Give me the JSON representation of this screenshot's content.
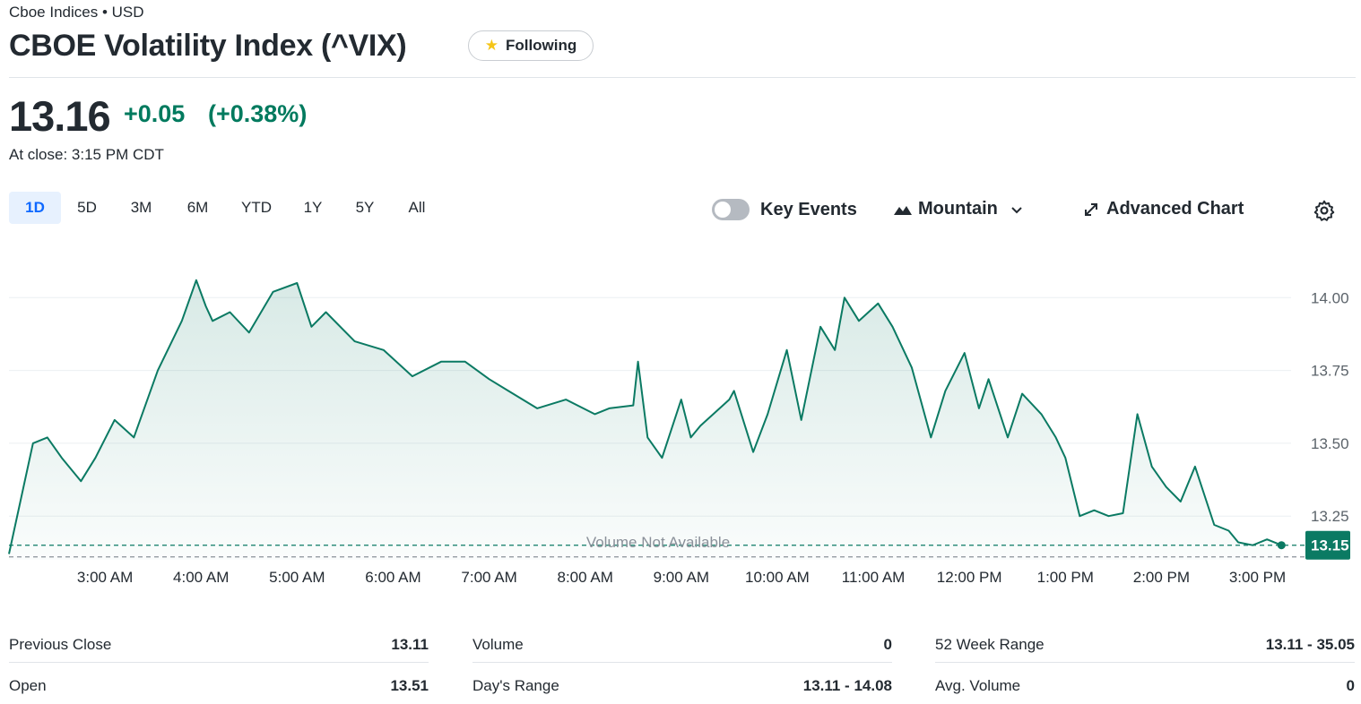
{
  "header": {
    "exchange": "Cboe Indices • USD",
    "title": "CBOE Volatility Index (^VIX)",
    "follow_label": "Following"
  },
  "quote": {
    "price": "13.16",
    "change": "+0.05",
    "change_percent": "(+0.38%)",
    "close_time": "At close: 3:15 PM CDT",
    "change_color": "#007a5e"
  },
  "ranges": [
    "1D",
    "5D",
    "3M",
    "6M",
    "YTD",
    "1Y",
    "5Y",
    "All"
  ],
  "active_range": "1D",
  "controls": {
    "key_events": "Key Events",
    "key_events_on": false,
    "chart_type": "Mountain",
    "advanced_chart": "Advanced Chart"
  },
  "chart_data": {
    "type": "area",
    "y_ticks": [
      "14.00",
      "13.75",
      "13.50",
      "13.25"
    ],
    "ylim": [
      13.1,
      14.13
    ],
    "x_ticks": [
      "3:00 AM",
      "4:00 AM",
      "5:00 AM",
      "6:00 AM",
      "7:00 AM",
      "8:00 AM",
      "9:00 AM",
      "10:00 AM",
      "11:00 AM",
      "12:00 PM",
      "1:00 PM",
      "2:00 PM",
      "3:00 PM"
    ],
    "x_tick_hours": [
      3,
      4,
      5,
      6,
      7,
      8,
      9,
      10,
      11,
      12,
      13,
      14,
      15
    ],
    "xlim_hours": [
      2.0,
      15.35
    ],
    "previous_close": 13.11,
    "last_price_label": "13.15",
    "volume_note": "Volume Not Available",
    "line_color": "#0b7a63",
    "series": [
      {
        "x_hours": [
          2.0,
          2.25,
          2.4,
          2.55,
          2.75,
          2.9,
          3.1,
          3.3,
          3.55,
          3.8,
          3.95,
          4.05,
          4.12,
          4.3,
          4.5,
          4.75,
          5.0,
          5.15,
          5.3,
          5.6,
          5.9,
          6.2,
          6.5,
          6.75,
          7.0,
          7.2,
          7.5,
          7.8,
          8.1,
          8.25,
          8.5,
          8.55,
          8.65,
          8.8,
          9.0,
          9.1,
          9.2,
          9.5,
          9.55,
          9.75,
          9.9,
          10.1,
          10.25,
          10.45,
          10.6,
          10.7,
          10.85,
          11.05,
          11.2,
          11.4,
          11.6,
          11.75,
          11.95,
          12.1,
          12.2,
          12.4,
          12.55,
          12.75,
          12.9,
          13.0,
          13.15,
          13.3,
          13.45,
          13.6,
          13.75,
          13.9,
          14.05,
          14.2,
          14.35,
          14.55,
          14.7,
          14.8,
          14.95,
          15.1,
          15.25
        ],
        "values": [
          13.12,
          13.5,
          13.52,
          13.45,
          13.37,
          13.45,
          13.58,
          13.52,
          13.75,
          13.92,
          14.06,
          13.97,
          13.92,
          13.95,
          13.88,
          14.02,
          14.05,
          13.9,
          13.95,
          13.85,
          13.82,
          13.73,
          13.78,
          13.78,
          13.72,
          13.68,
          13.62,
          13.65,
          13.6,
          13.62,
          13.63,
          13.78,
          13.52,
          13.45,
          13.65,
          13.52,
          13.56,
          13.65,
          13.68,
          13.47,
          13.6,
          13.82,
          13.58,
          13.9,
          13.82,
          14.0,
          13.92,
          13.98,
          13.9,
          13.76,
          13.52,
          13.68,
          13.81,
          13.62,
          13.72,
          13.52,
          13.67,
          13.6,
          13.52,
          13.45,
          13.25,
          13.27,
          13.25,
          13.26,
          13.6,
          13.42,
          13.35,
          13.3,
          13.42,
          13.22,
          13.2,
          13.16,
          13.15,
          13.17,
          13.15
        ]
      }
    ]
  },
  "stats": {
    "rows": [
      {
        "label": "Previous Close",
        "value": "13.11"
      },
      {
        "label": "Open",
        "value": "13.51"
      },
      {
        "label": "Volume",
        "value": "0"
      },
      {
        "label": "Day's Range",
        "value": "13.11 - 14.08"
      },
      {
        "label": "52 Week Range",
        "value": "13.11 - 35.05"
      },
      {
        "label": "Avg. Volume",
        "value": "0"
      }
    ]
  }
}
